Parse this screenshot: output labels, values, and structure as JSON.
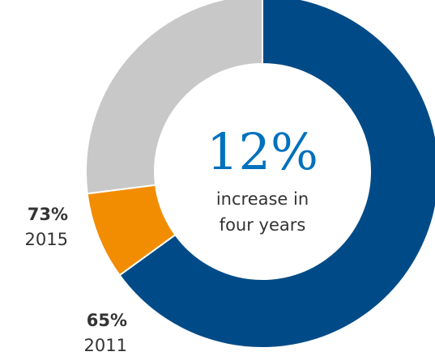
{
  "chart_data": {
    "type": "pie",
    "variant": "donut",
    "slices": [
      {
        "value": 65,
        "color": "#004B87",
        "pct_label": "65%",
        "year_label": "2011"
      },
      {
        "value": 8,
        "color": "#F28C00",
        "pct_label": "73%",
        "year_label": "2015"
      },
      {
        "value": 27,
        "color": "#C8C8C8"
      }
    ],
    "center": {
      "value": "12%",
      "line1": "increase in",
      "line2": "four years"
    },
    "colors": {
      "center_value": "#0071BC",
      "label_text": "#333333"
    }
  }
}
